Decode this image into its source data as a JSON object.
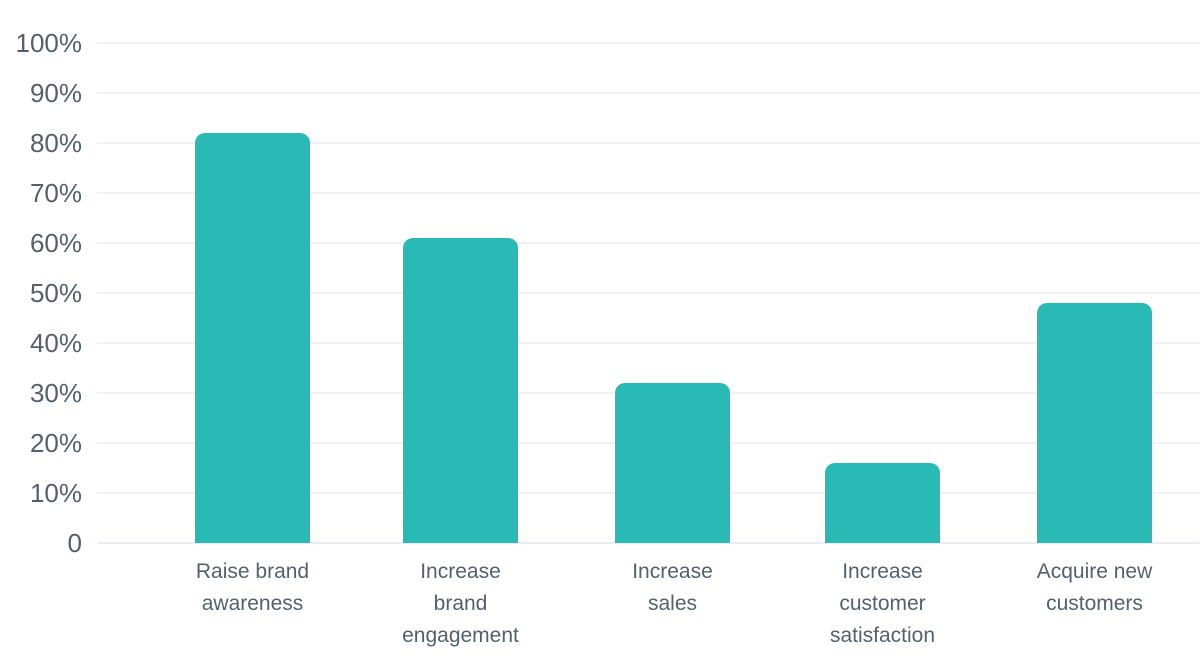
{
  "chart_data": {
    "type": "bar",
    "categories": [
      "Raise brand awareness",
      "Increase brand engagement",
      "Increase sales",
      "Increase customer satisfaction",
      "Acquire new customers"
    ],
    "category_lines": [
      [
        "Raise brand",
        "awareness"
      ],
      [
        "Increase",
        "brand",
        "engagement"
      ],
      [
        "Increase",
        "sales"
      ],
      [
        "Increase",
        "customer",
        "satisfaction"
      ],
      [
        "Acquire new",
        "customers"
      ]
    ],
    "values": [
      82,
      61,
      32,
      16,
      48
    ],
    "unit": "%",
    "ylim": [
      0,
      100
    ],
    "ytick_interval": 10,
    "ytick_labels_top_to_bottom": [
      "100%",
      "90%",
      "80%",
      "70%",
      "60%",
      "50%",
      "40%",
      "30%",
      "20%",
      "10%",
      "0"
    ],
    "grid": "horizontal",
    "legend": "none",
    "colors": {
      "bar": "#2ABAB6",
      "label": "#575F6F",
      "gridline": "#F1F1F3",
      "baseline": "#EBECEF",
      "background": "#FFFFFF"
    }
  }
}
